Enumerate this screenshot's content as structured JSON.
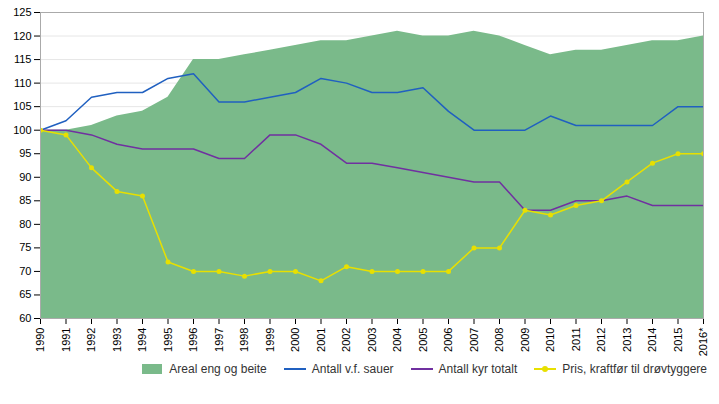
{
  "chart_data": {
    "type": "line",
    "x": [
      1990,
      1991,
      1992,
      1993,
      1994,
      1995,
      1996,
      1997,
      1998,
      1999,
      2000,
      2001,
      2002,
      2003,
      2004,
      2005,
      2006,
      2007,
      2008,
      2009,
      2010,
      2011,
      2012,
      2013,
      2014,
      2015,
      2016
    ],
    "series": [
      {
        "name": "Areal eng og beite",
        "type": "area",
        "color": "#7aba8a",
        "values": [
          100,
          100,
          101,
          103,
          104,
          107,
          115,
          115,
          116,
          117,
          118,
          119,
          119,
          120,
          121,
          120,
          120,
          121,
          120,
          118,
          116,
          117,
          117,
          118,
          119,
          119,
          120
        ]
      },
      {
        "name": "Antall v.f. sauer",
        "type": "line",
        "color": "#2060c0",
        "values": [
          100,
          102,
          107,
          108,
          108,
          111,
          112,
          106,
          106,
          107,
          108,
          111,
          110,
          108,
          108,
          109,
          104,
          100,
          100,
          100,
          103,
          101,
          101,
          101,
          101,
          105,
          105
        ]
      },
      {
        "name": "Antall kyr totalt",
        "type": "line",
        "color": "#7030a0",
        "values": [
          100,
          100,
          99,
          97,
          96,
          96,
          96,
          94,
          94,
          99,
          99,
          97,
          93,
          93,
          92,
          91,
          90,
          89,
          89,
          83,
          83,
          85,
          85,
          86,
          84,
          84,
          84
        ]
      },
      {
        "name": "Pris, kraftfør til drøvtyggere",
        "type": "line",
        "color": "#e8e000",
        "marker": "circle",
        "values": [
          100,
          99,
          92,
          87,
          86,
          72,
          70,
          70,
          69,
          70,
          70,
          68,
          71,
          70,
          70,
          70,
          70,
          75,
          75,
          83,
          82,
          84,
          85,
          89,
          93,
          95,
          95
        ]
      }
    ],
    "xlim": [
      1990,
      2016
    ],
    "xticks": [
      1990,
      1991,
      1992,
      1993,
      1994,
      1995,
      1996,
      1997,
      1998,
      1999,
      2000,
      2001,
      2002,
      2003,
      2004,
      2005,
      2006,
      2007,
      2008,
      2009,
      2010,
      2011,
      2012,
      2013,
      2014,
      2015,
      {
        "value": 2016,
        "label": "2016*"
      }
    ],
    "ylim": [
      60,
      125
    ],
    "yticks": [
      60,
      65,
      70,
      75,
      80,
      85,
      90,
      95,
      100,
      105,
      110,
      115,
      120,
      125
    ],
    "grid": true,
    "legend": "lower right"
  }
}
